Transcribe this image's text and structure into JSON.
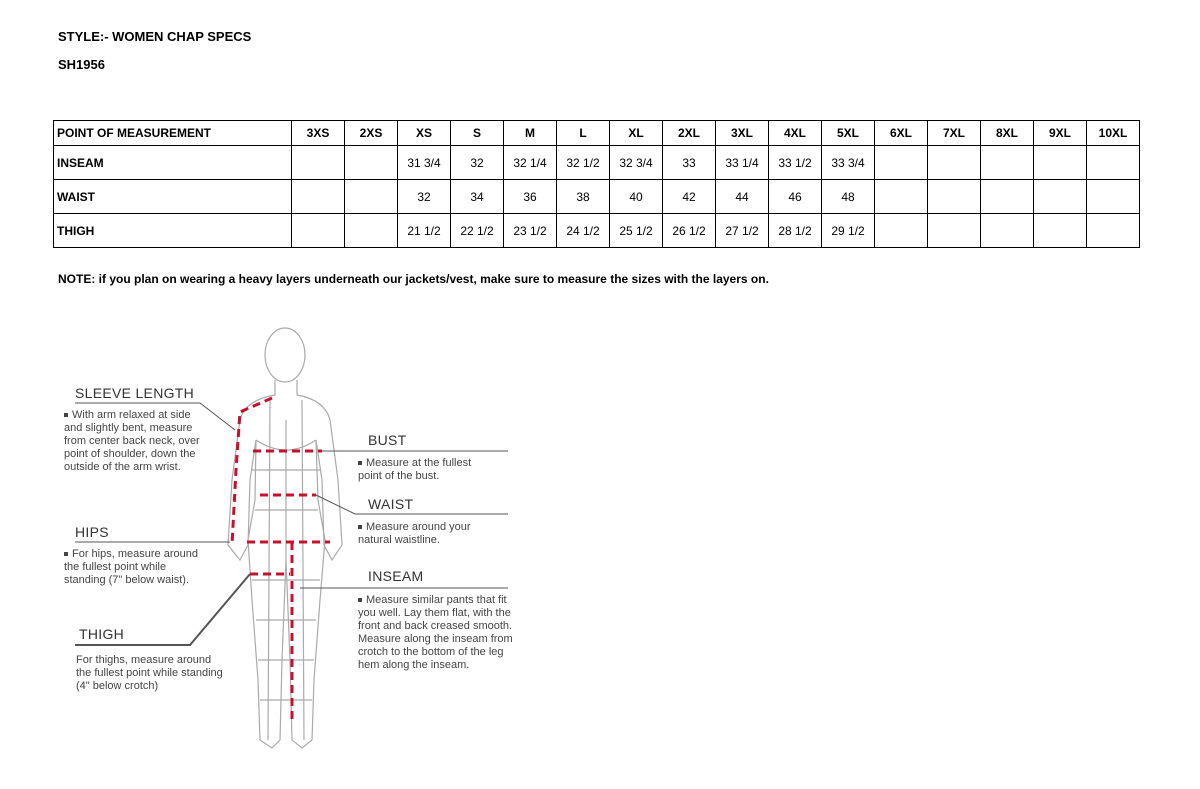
{
  "style_line": "STYLE:- WOMEN CHAP SPECS",
  "style_code": "SH1956",
  "table": {
    "headers": [
      "POINT OF MEASUREMENT",
      "3XS",
      "2XS",
      "XS",
      "S",
      "M",
      "L",
      "XL",
      "2XL",
      "3XL",
      "4XL",
      "5XL",
      "6XL",
      "7XL",
      "8XL",
      "9XL",
      "10XL"
    ],
    "rows": [
      [
        "INSEAM",
        "",
        "",
        "31 3/4",
        "32",
        "32 1/4",
        "32 1/2",
        "32 3/4",
        "33",
        "33 1/4",
        "33 1/2",
        "33 3/4",
        "",
        "",
        "",
        "",
        ""
      ],
      [
        "WAIST",
        "",
        "",
        "32",
        "34",
        "36",
        "38",
        "40",
        "42",
        "44",
        "46",
        "48",
        "",
        "",
        "",
        "",
        ""
      ],
      [
        "THIGH",
        "",
        "",
        "21 1/2",
        "22 1/2",
        "23 1/2",
        "24 1/2",
        "25 1/2",
        "26 1/2",
        "27 1/2",
        "28 1/2",
        "29 1/2",
        "",
        "",
        "",
        "",
        ""
      ]
    ]
  },
  "note": "NOTE: if you plan on wearing a heavy layers underneath our jackets/vest, make sure to measure the sizes with the layers on.",
  "guide": {
    "sleeve": {
      "title": "SLEEVE LENGTH",
      "text": "With arm relaxed at side and slightly bent, measure from center back neck, over point of shoulder, down the outside of the arm wrist."
    },
    "hips": {
      "title": "HIPS",
      "text": "For hips, measure around the fullest point while standing (7\" below waist)."
    },
    "thigh": {
      "title": "THIGH",
      "text": "For thighs, measure around the fullest point while standing (4\" below crotch)"
    },
    "bust": {
      "title": "BUST",
      "text": "Measure at the fullest point of the bust."
    },
    "waist": {
      "title": "WAIST",
      "text": "Measure around your natural waistline."
    },
    "inseam": {
      "title": "INSEAM",
      "text": "Measure similar pants that fit you well. Lay them flat, with the front and back creased smooth. Measure along the inseam from crotch to the bottom of the leg hem along the inseam."
    }
  },
  "colors": {
    "measure_line": "#c8102e",
    "figure": "#999999"
  }
}
